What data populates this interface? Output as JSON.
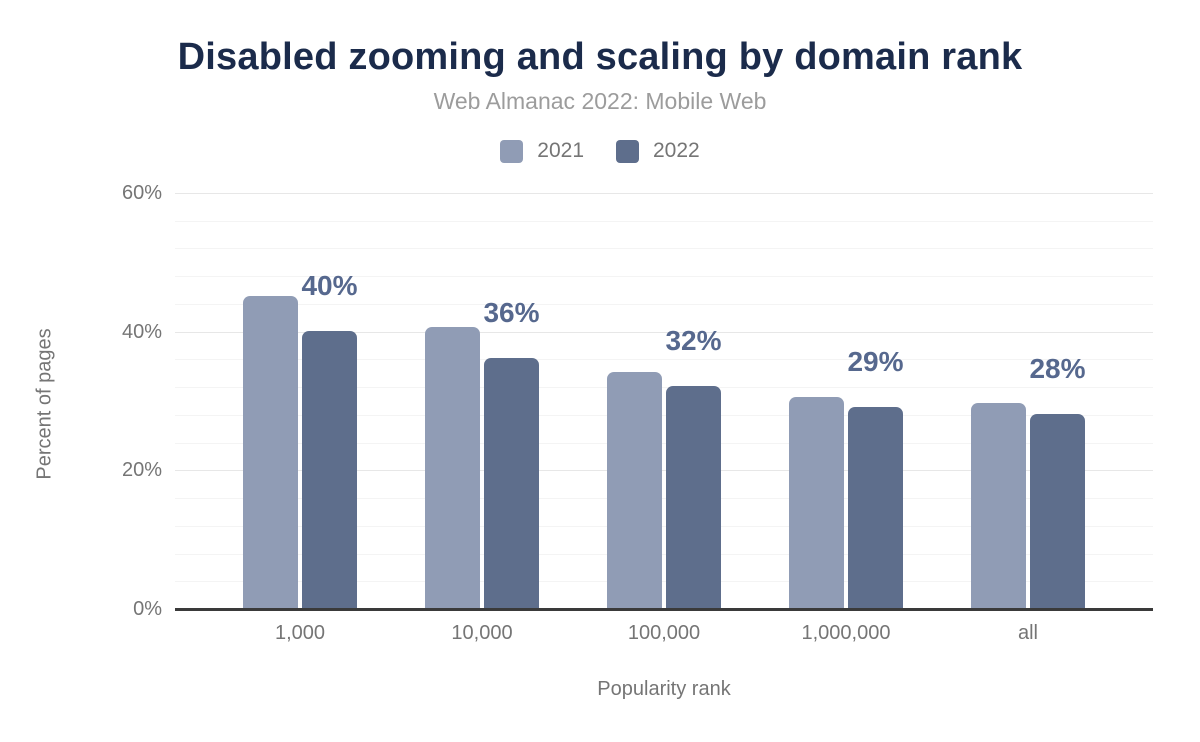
{
  "header": {
    "title": "Disabled zooming and scaling by domain rank",
    "subtitle": "Web Almanac 2022: Mobile Web"
  },
  "chart_data": {
    "type": "bar",
    "title": "Disabled zooming and scaling by domain rank",
    "subtitle": "Web Almanac 2022: Mobile Web",
    "categories": [
      "1,000",
      "10,000",
      "100,000",
      "1,000,000",
      "all"
    ],
    "series": [
      {
        "name": "2021",
        "color": "#909cb5",
        "values": [
          45,
          40.5,
          34,
          30.5,
          29.5
        ]
      },
      {
        "name": "2022",
        "color": "#5e6e8c",
        "values": [
          40,
          36,
          32,
          29,
          28
        ],
        "data_labels": [
          "40%",
          "36%",
          "32%",
          "29%",
          "28%"
        ]
      }
    ],
    "xlabel": "Popularity rank",
    "ylabel": "Percent of pages",
    "ylim": [
      0,
      60
    ],
    "yticks": [
      {
        "value": 0,
        "label": "0%"
      },
      {
        "value": 20,
        "label": "20%"
      },
      {
        "value": 40,
        "label": "40%"
      },
      {
        "value": 60,
        "label": "60%"
      }
    ],
    "minor_grid_step": 4,
    "grid": true,
    "legend_position": "top"
  },
  "colors": {
    "title": "#1b2b4b",
    "subtitle": "#9c9c9c",
    "axis_text": "#757575",
    "data_label": "#56688e",
    "series_2021": "#909cb5",
    "series_2022": "#5e6e8c",
    "gridline_major": "#e7e7e7",
    "gridline_minor": "#f4f4f4",
    "baseline": "#3a3a3a",
    "background": "#ffffff"
  }
}
